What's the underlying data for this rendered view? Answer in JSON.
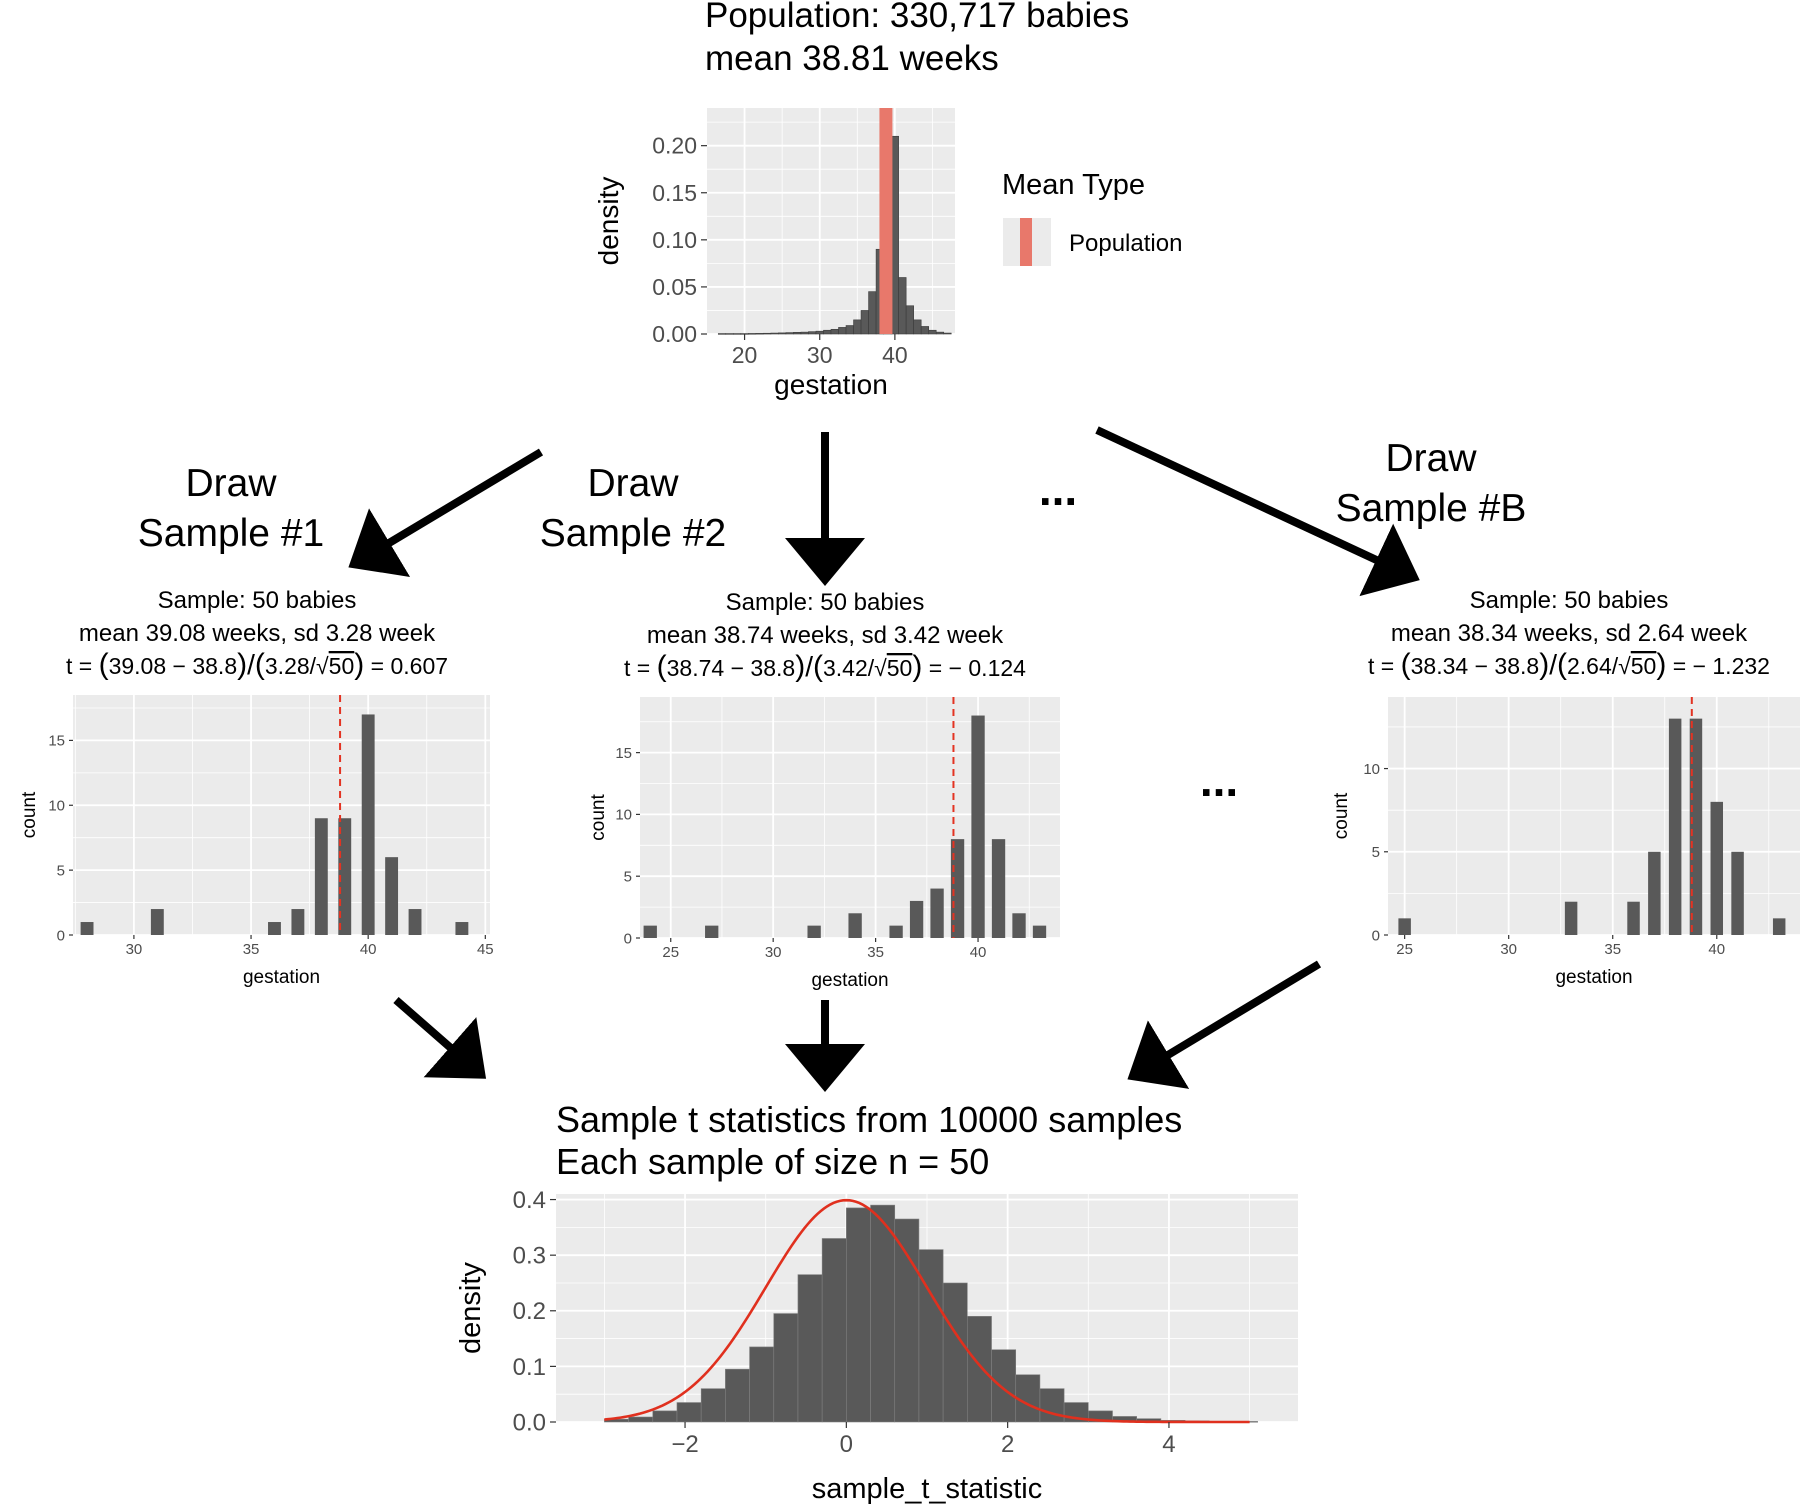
{
  "flow": {
    "draw1": [
      "Draw",
      "Sample #1"
    ],
    "draw2": [
      "Draw",
      "Sample #2"
    ],
    "drawB": [
      "Draw",
      "Sample #B"
    ],
    "ellipsis": "..."
  },
  "colors": {
    "panel_bg": "#ebebeb",
    "grid": "#ffffff",
    "bar": "#595959",
    "population_mean": "#e8786b",
    "sample_mean": "#e33322",
    "normal_curve": "#e0301e",
    "arrow": "#000000"
  },
  "chart_data": [
    {
      "id": "population",
      "type": "bar",
      "title": [
        "Population: 330,717 babies",
        "mean 38.81 weeks"
      ],
      "xlabel": "gestation",
      "ylabel": "density",
      "xlim": [
        15,
        48
      ],
      "ylim": [
        0,
        0.24
      ],
      "xticks": [
        20,
        30,
        40
      ],
      "yticks": [
        0.0,
        0.05,
        0.1,
        0.15,
        0.2
      ],
      "ytick_labels": [
        "0.00",
        "0.05",
        "0.10",
        "0.15",
        "0.20"
      ],
      "bin_width": 1,
      "x": [
        17,
        18,
        19,
        20,
        21,
        22,
        23,
        24,
        25,
        26,
        27,
        28,
        29,
        30,
        31,
        32,
        33,
        34,
        35,
        36,
        37,
        38,
        39,
        40,
        41,
        42,
        43,
        44,
        45,
        46,
        47
      ],
      "values": [
        0.0005,
        0.0005,
        0.0005,
        0.0005,
        0.0006,
        0.0007,
        0.0008,
        0.001,
        0.0012,
        0.0015,
        0.0018,
        0.002,
        0.0025,
        0.003,
        0.004,
        0.005,
        0.007,
        0.009,
        0.015,
        0.025,
        0.045,
        0.09,
        0.225,
        0.21,
        0.06,
        0.03,
        0.015,
        0.008,
        0.004,
        0.002,
        0.001
      ],
      "mean_line": 38.81,
      "legend": {
        "title": "Mean Type",
        "entries": [
          "Population"
        ],
        "position": "right"
      }
    },
    {
      "id": "sample1",
      "type": "bar",
      "title": [
        "Sample: 50 babies",
        "mean 39.08 weeks, sd 3.28 week"
      ],
      "t_formula": {
        "mean": "39.08",
        "mu": "38.8",
        "sd": "3.28",
        "n": "50",
        "t": "0.607"
      },
      "xlabel": "gestation",
      "ylabel": "count",
      "xlim": [
        27.4,
        45.2
      ],
      "ylim": [
        0,
        18.5
      ],
      "xticks": [
        30,
        35,
        40,
        45
      ],
      "yticks": [
        0,
        5,
        10,
        15
      ],
      "bin_width": 0.55,
      "x": [
        28,
        31,
        36,
        37,
        38,
        39,
        40,
        41,
        42,
        44
      ],
      "values": [
        1,
        2,
        1,
        2,
        9,
        9,
        17,
        6,
        2,
        1
      ],
      "mean_line": 38.8
    },
    {
      "id": "sample2",
      "type": "bar",
      "title": [
        "Sample: 50 babies",
        "mean 38.74 weeks, sd 3.42 week"
      ],
      "t_formula": {
        "mean": "38.74",
        "mu": "38.8",
        "sd": "3.42",
        "n": "50",
        "t": "− 0.124"
      },
      "xlabel": "gestation",
      "ylabel": "count",
      "xlim": [
        23.5,
        44
      ],
      "ylim": [
        0,
        19.5
      ],
      "xticks": [
        25,
        30,
        35,
        40
      ],
      "yticks": [
        0,
        5,
        10,
        15
      ],
      "bin_width": 0.65,
      "x": [
        24,
        27,
        32,
        34,
        36,
        37,
        38,
        39,
        40,
        41,
        42,
        43
      ],
      "values": [
        1,
        1,
        1,
        2,
        1,
        3,
        4,
        8,
        18,
        8,
        2,
        1
      ],
      "mean_line": 38.8
    },
    {
      "id": "sampleB",
      "type": "bar",
      "title": [
        "Sample: 50 babies",
        "mean 38.34 weeks, sd 2.64 week"
      ],
      "t_formula": {
        "mean": "38.34",
        "mu": "38.8",
        "sd": "2.64",
        "n": "50",
        "t": "− 1.232"
      },
      "xlabel": "gestation",
      "ylabel": "count",
      "xlim": [
        24.2,
        44
      ],
      "ylim": [
        0,
        14.3
      ],
      "xticks": [
        25,
        30,
        35,
        40
      ],
      "yticks": [
        0,
        5,
        10
      ],
      "bin_width": 0.6,
      "x": [
        25,
        33,
        36,
        37,
        38,
        39,
        40,
        41,
        43
      ],
      "values": [
        1,
        2,
        2,
        5,
        13,
        13,
        8,
        5,
        1
      ],
      "mean_line": 38.8
    },
    {
      "id": "t_distribution",
      "type": "bar",
      "title": [
        "Sample t statistics from 10000 samples",
        "Each sample of size n = 50"
      ],
      "xlabel": "sample_t_statistic",
      "ylabel": "density",
      "xlim": [
        -3.6,
        5.6
      ],
      "ylim": [
        0,
        0.41
      ],
      "xticks": [
        -2,
        0,
        2,
        4
      ],
      "xtick_labels": [
        "−2",
        "0",
        "2",
        "4"
      ],
      "yticks": [
        0.0,
        0.1,
        0.2,
        0.3,
        0.4
      ],
      "ytick_labels": [
        "0.0",
        "0.1",
        "0.2",
        "0.3",
        "0.4"
      ],
      "bin_width": 0.3,
      "x": [
        -2.85,
        -2.55,
        -2.25,
        -1.95,
        -1.65,
        -1.35,
        -1.05,
        -0.75,
        -0.45,
        -0.15,
        0.15,
        0.45,
        0.75,
        1.05,
        1.35,
        1.65,
        1.95,
        2.25,
        2.55,
        2.85,
        3.15,
        3.45,
        3.75,
        4.05,
        4.35,
        4.65,
        4.95
      ],
      "values": [
        0.005,
        0.009,
        0.02,
        0.035,
        0.06,
        0.095,
        0.135,
        0.195,
        0.265,
        0.33,
        0.385,
        0.39,
        0.365,
        0.31,
        0.25,
        0.19,
        0.13,
        0.085,
        0.06,
        0.035,
        0.02,
        0.01,
        0.006,
        0.003,
        0.002,
        0.001,
        0.001
      ],
      "curve": {
        "type": "normal",
        "mean": 0,
        "sd": 1,
        "x_range": [
          -3,
          5
        ]
      }
    }
  ]
}
